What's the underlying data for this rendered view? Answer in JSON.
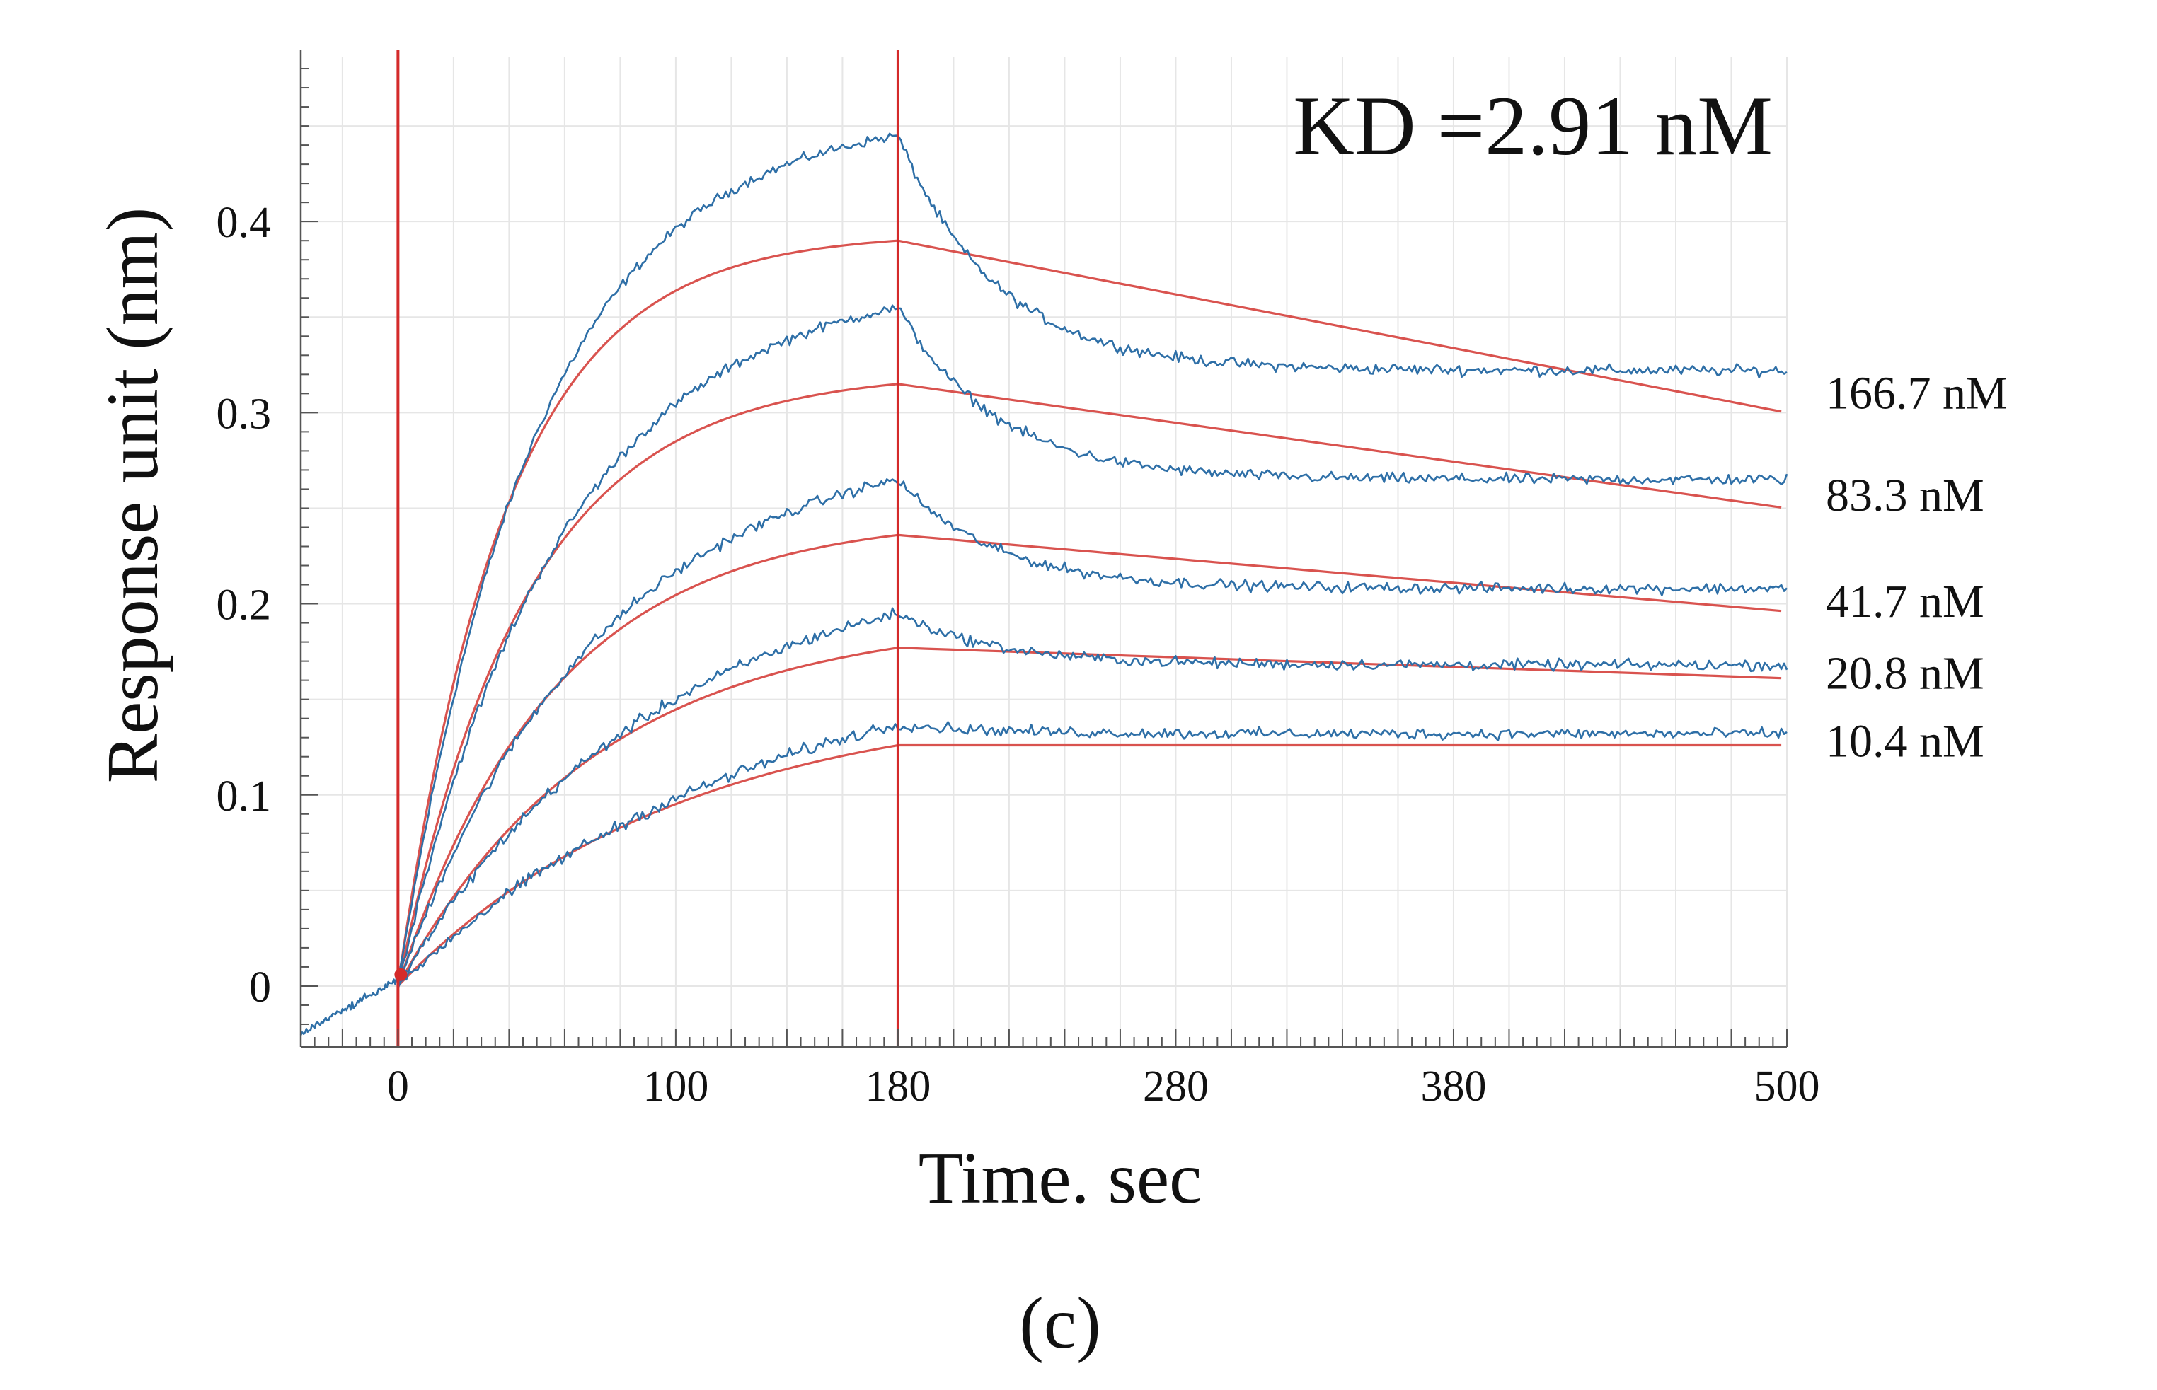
{
  "figure": {
    "kd_label": "KD =2.91 nM",
    "panel_label": "(c)"
  },
  "chart_data": {
    "type": "line",
    "xlabel": "Time. sec",
    "ylabel": "Response unit (nm)",
    "xlim": [
      -35,
      500
    ],
    "ylim": [
      -0.03,
      0.49
    ],
    "x_ticks": [
      0,
      100,
      180,
      280,
      380,
      500
    ],
    "y_ticks": [
      0,
      0.1,
      0.2,
      0.3,
      0.4
    ],
    "grid": true,
    "phase_markers_x": [
      0,
      180
    ],
    "baseline": {
      "x_start": -35,
      "y_start": -0.025,
      "y_end": 0.003
    },
    "legend_placement": "right, inline labels at series ends",
    "colors": {
      "measured": "#2e6fa7",
      "fit": "#d9534f",
      "phase_marker": "#d42a2a"
    },
    "series": [
      {
        "name": "166.7 nM",
        "fit_assoc_end": 0.39,
        "fit_end": 0.3,
        "data_peak": 0.445,
        "data_end": 0.322
      },
      {
        "name": "83.3 nM",
        "fit_assoc_end": 0.315,
        "fit_end": 0.25,
        "data_peak": 0.355,
        "data_end": 0.265
      },
      {
        "name": "41.7 nM",
        "fit_assoc_end": 0.236,
        "fit_end": 0.196,
        "data_peak": 0.265,
        "data_end": 0.208
      },
      {
        "name": "20.8 nM",
        "fit_assoc_end": 0.177,
        "fit_end": 0.161,
        "data_peak": 0.195,
        "data_end": 0.168
      },
      {
        "name": "10.4 nM",
        "fit_assoc_end": 0.126,
        "fit_end": 0.126,
        "data_peak": 0.137,
        "data_end": 0.132
      }
    ]
  }
}
